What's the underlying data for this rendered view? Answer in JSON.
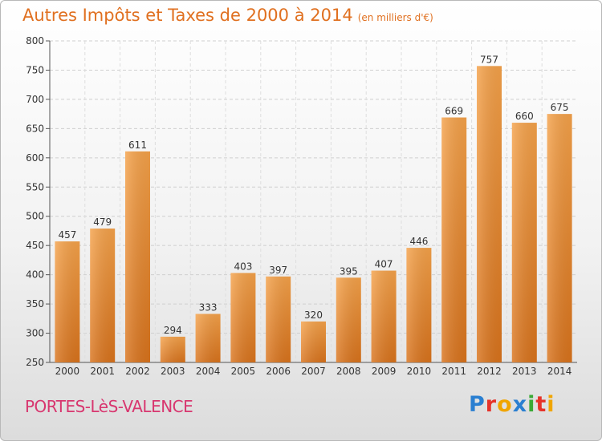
{
  "header": {
    "title": "Autres Impôts et Taxes de 2000 à 2014",
    "unit": "(en milliers d'€)"
  },
  "footer": {
    "commune": "PORTES-LèS-VALENCE",
    "logo_text": "Proxiti",
    "logo_colors": [
      "#2a7fd1",
      "#e6332a",
      "#f0a500",
      "#2a7fd1",
      "#3aa935",
      "#e6332a",
      "#f0a500"
    ]
  },
  "chart_data": {
    "type": "bar",
    "title": "Autres Impôts et Taxes de 2000 à 2014",
    "categories": [
      "2000",
      "2001",
      "2002",
      "2003",
      "2004",
      "2005",
      "2006",
      "2007",
      "2008",
      "2009",
      "2010",
      "2011",
      "2012",
      "2013",
      "2014"
    ],
    "values": [
      457,
      479,
      611,
      294,
      333,
      403,
      397,
      320,
      395,
      407,
      446,
      669,
      757,
      660,
      675
    ],
    "ylim": [
      250,
      800
    ],
    "yticks": [
      250,
      300,
      350,
      400,
      450,
      500,
      550,
      600,
      650,
      700,
      750,
      800
    ],
    "grid": true,
    "bar_color": "#f08c2e"
  }
}
